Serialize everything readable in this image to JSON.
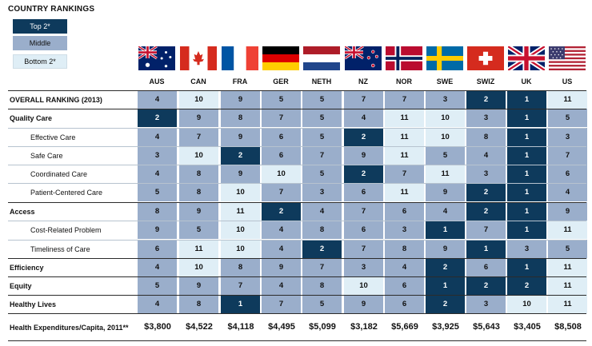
{
  "legend": {
    "title": "COUNTRY RANKINGS",
    "top": "Top 2*",
    "middle": "Middle",
    "bottom": "Bottom 2*"
  },
  "colors": {
    "top": "#0e3a5c",
    "middle": "#9aaecb",
    "bottom": "#dfeef6"
  },
  "countries": [
    "AUS",
    "CAN",
    "FRA",
    "GER",
    "NETH",
    "NZ",
    "NOR",
    "SWE",
    "SWIZ",
    "UK",
    "US"
  ],
  "flag_icons": [
    "australia-flag-icon",
    "canada-flag-icon",
    "france-flag-icon",
    "germany-flag-icon",
    "netherlands-flag-icon",
    "new-zealand-flag-icon",
    "norway-flag-icon",
    "sweden-flag-icon",
    "switzerland-flag-icon",
    "uk-flag-icon",
    "us-flag-icon"
  ],
  "chart_data": {
    "type": "table",
    "columns": [
      "AUS",
      "CAN",
      "FRA",
      "GER",
      "NETH",
      "NZ",
      "NOR",
      "SWE",
      "SWIZ",
      "UK",
      "US"
    ],
    "rows": [
      {
        "label": "OVERALL RANKING (2013)",
        "bold": true,
        "values": [
          4,
          10,
          9,
          5,
          5,
          7,
          7,
          3,
          2,
          1,
          11
        ],
        "tiers": [
          "m",
          "b",
          "m",
          "m",
          "m",
          "m",
          "m",
          "m",
          "t",
          "t",
          "b"
        ]
      },
      {
        "label": "Quality Care",
        "bold": true,
        "values": [
          2,
          9,
          8,
          7,
          5,
          4,
          11,
          10,
          3,
          1,
          5
        ],
        "tiers": [
          "t",
          "m",
          "m",
          "m",
          "m",
          "m",
          "b",
          "b",
          "m",
          "t",
          "m"
        ]
      },
      {
        "label": "Effective Care",
        "bold": false,
        "values": [
          4,
          7,
          9,
          6,
          5,
          2,
          11,
          10,
          8,
          1,
          3
        ],
        "tiers": [
          "m",
          "m",
          "m",
          "m",
          "m",
          "t",
          "b",
          "b",
          "m",
          "t",
          "m"
        ]
      },
      {
        "label": "Safe Care",
        "bold": false,
        "values": [
          3,
          10,
          2,
          6,
          7,
          9,
          11,
          5,
          4,
          1,
          7
        ],
        "tiers": [
          "m",
          "b",
          "t",
          "m",
          "m",
          "m",
          "b",
          "m",
          "m",
          "t",
          "m"
        ]
      },
      {
        "label": "Coordinated Care",
        "bold": false,
        "values": [
          4,
          8,
          9,
          10,
          5,
          2,
          7,
          11,
          3,
          1,
          6
        ],
        "tiers": [
          "m",
          "m",
          "m",
          "b",
          "m",
          "t",
          "m",
          "b",
          "m",
          "t",
          "m"
        ]
      },
      {
        "label": "Patient-Centered Care",
        "bold": false,
        "values": [
          5,
          8,
          10,
          7,
          3,
          6,
          11,
          9,
          2,
          1,
          4
        ],
        "tiers": [
          "m",
          "m",
          "b",
          "m",
          "m",
          "m",
          "b",
          "m",
          "t",
          "t",
          "m"
        ]
      },
      {
        "label": "Access",
        "bold": true,
        "values": [
          8,
          9,
          11,
          2,
          4,
          7,
          6,
          4,
          2,
          1,
          9
        ],
        "tiers": [
          "m",
          "m",
          "b",
          "t",
          "m",
          "m",
          "m",
          "m",
          "t",
          "t",
          "m"
        ]
      },
      {
        "label": "Cost-Related Problem",
        "bold": false,
        "values": [
          9,
          5,
          10,
          4,
          8,
          6,
          3,
          1,
          7,
          1,
          11
        ],
        "tiers": [
          "m",
          "m",
          "b",
          "m",
          "m",
          "m",
          "m",
          "t",
          "m",
          "t",
          "b"
        ]
      },
      {
        "label": "Timeliness of Care",
        "bold": false,
        "values": [
          6,
          11,
          10,
          4,
          2,
          7,
          8,
          9,
          1,
          3,
          5
        ],
        "tiers": [
          "m",
          "b",
          "b",
          "m",
          "t",
          "m",
          "m",
          "m",
          "t",
          "m",
          "m"
        ]
      },
      {
        "label": "Efficiency",
        "bold": true,
        "values": [
          4,
          10,
          8,
          9,
          7,
          3,
          4,
          2,
          6,
          1,
          11
        ],
        "tiers": [
          "m",
          "b",
          "m",
          "m",
          "m",
          "m",
          "m",
          "t",
          "m",
          "t",
          "b"
        ]
      },
      {
        "label": "Equity",
        "bold": true,
        "values": [
          5,
          9,
          7,
          4,
          8,
          10,
          6,
          1,
          2,
          2,
          11
        ],
        "tiers": [
          "m",
          "m",
          "m",
          "m",
          "m",
          "b",
          "m",
          "t",
          "t",
          "t",
          "b"
        ]
      },
      {
        "label": "Healthy Lives",
        "bold": true,
        "values": [
          4,
          8,
          1,
          7,
          5,
          9,
          6,
          2,
          3,
          10,
          11
        ],
        "tiers": [
          "m",
          "m",
          "t",
          "m",
          "m",
          "m",
          "m",
          "t",
          "m",
          "b",
          "b"
        ]
      }
    ],
    "footer": {
      "label": "Health Expenditures/Capita, 2011**",
      "values": [
        "$3,800",
        "$4,522",
        "$4,118",
        "$4,495",
        "$5,099",
        "$3,182",
        "$5,669",
        "$3,925",
        "$5,643",
        "$3,405",
        "$8,508"
      ]
    }
  }
}
